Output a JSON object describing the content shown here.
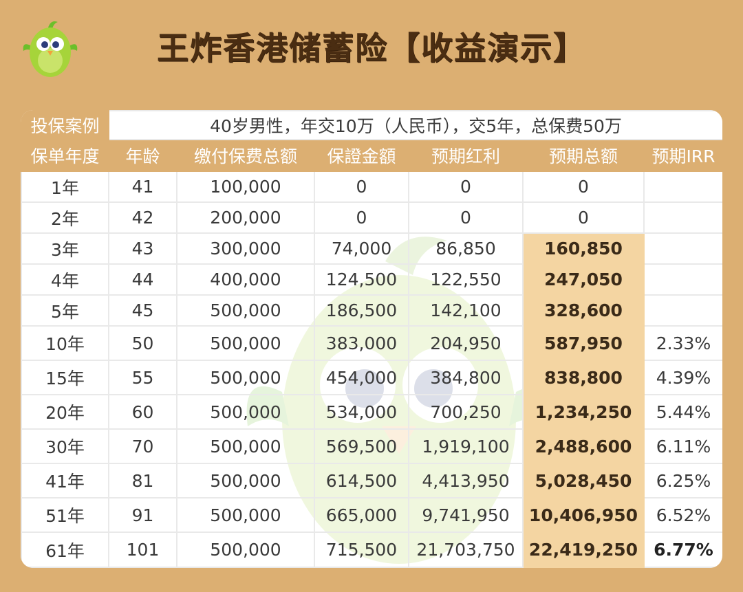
{
  "header": {
    "title": "王炸香港储蓄险【收益演示】"
  },
  "table": {
    "case_label": "投保案例",
    "case_text": "40岁男性，年交10万（人民币），交5年，总保费50万",
    "columns": [
      "保单年度",
      "年龄",
      "缴付保费总额",
      "保證金額",
      "预期红利",
      "预期总额",
      "预期IRR"
    ],
    "rows": [
      {
        "year": "1年",
        "age": "41",
        "premium": "100,000",
        "guaranteed": "0",
        "bonus": "0",
        "total": "0",
        "irr": ""
      },
      {
        "year": "2年",
        "age": "42",
        "premium": "200,000",
        "guaranteed": "0",
        "bonus": "0",
        "total": "0",
        "irr": ""
      },
      {
        "year": "3年",
        "age": "43",
        "premium": "300,000",
        "guaranteed": "74,000",
        "bonus": "86,850",
        "total": "160,850",
        "irr": ""
      },
      {
        "year": "4年",
        "age": "44",
        "premium": "400,000",
        "guaranteed": "124,500",
        "bonus": "122,550",
        "total": "247,050",
        "irr": ""
      },
      {
        "year": "5年",
        "age": "45",
        "premium": "500,000",
        "guaranteed": "186,500",
        "bonus": "142,100",
        "total": "328,600",
        "irr": ""
      },
      {
        "year": "10年",
        "age": "50",
        "premium": "500,000",
        "guaranteed": "383,000",
        "bonus": "204,950",
        "total": "587,950",
        "irr": "2.33%"
      },
      {
        "year": "15年",
        "age": "55",
        "premium": "500,000",
        "guaranteed": "454,000",
        "bonus": "384,800",
        "total": "838,800",
        "irr": "4.39%"
      },
      {
        "year": "20年",
        "age": "60",
        "premium": "500,000",
        "guaranteed": "534,000",
        "bonus": "700,250",
        "total": "1,234,250",
        "irr": "5.44%"
      },
      {
        "year": "30年",
        "age": "70",
        "premium": "500,000",
        "guaranteed": "569,500",
        "bonus": "1,919,100",
        "total": "2,488,600",
        "irr": "6.11%"
      },
      {
        "year": "41年",
        "age": "81",
        "premium": "500,000",
        "guaranteed": "614,500",
        "bonus": "4,413,950",
        "total": "5,028,450",
        "irr": "6.25%"
      },
      {
        "year": "51年",
        "age": "91",
        "premium": "500,000",
        "guaranteed": "665,000",
        "bonus": "9,741,950",
        "total": "10,406,950",
        "irr": "6.52%"
      },
      {
        "year": "61年",
        "age": "101",
        "premium": "500,000",
        "guaranteed": "715,500",
        "bonus": "21,703,750",
        "total": "22,419,250",
        "irr": "6.77%"
      }
    ]
  },
  "colors": {
    "background": "#dcaf72",
    "header_fill": "#dcaf72",
    "total_highlight": "#f4d5a2",
    "title_text": "#4a2d12"
  },
  "icons": {
    "mascot": "green-bird-mascot-icon",
    "watermark": "bird-watermark-icon"
  }
}
